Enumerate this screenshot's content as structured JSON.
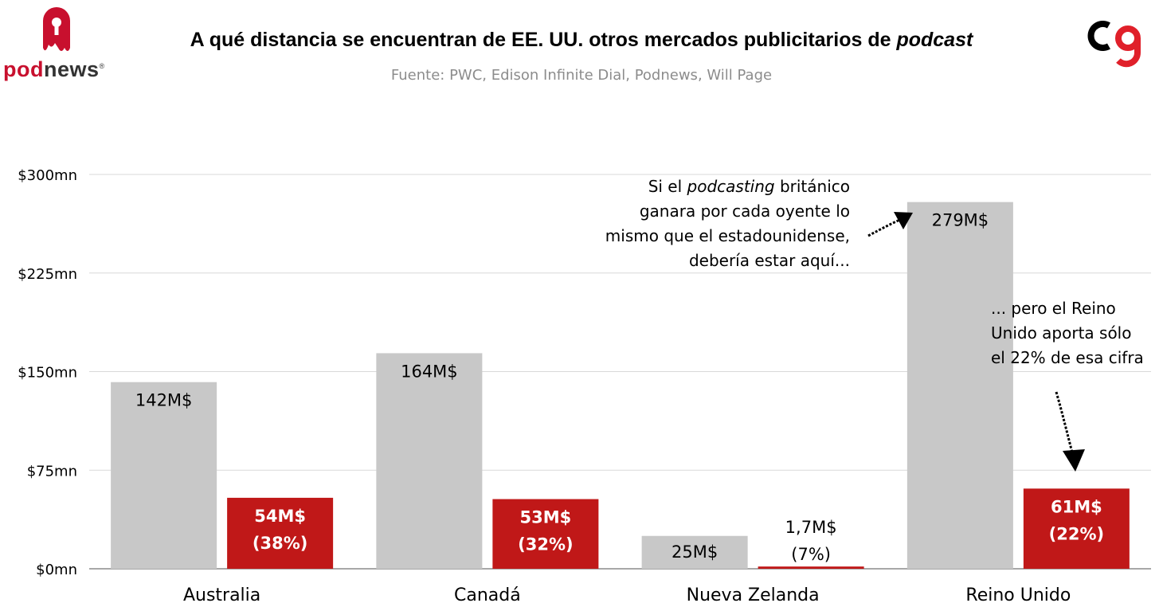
{
  "header": {
    "title_prefix": "A qué distancia se encuentran de EE. UU. otros mercados publicitarios de ",
    "title_emphasis": "podcast",
    "subtitle": "Fuente: PWC, Edison Infinite Dial, Podnews, Will Page"
  },
  "logos": {
    "left_brand_part1": "pod",
    "left_brand_part2": "news",
    "left_registered": "®",
    "right_logo_icon": "cg-monogram-icon"
  },
  "annotations": {
    "note1_lines": [
      [
        "Si el ",
        "podcasting",
        " británico"
      ],
      [
        "ganara  por cada oyente lo"
      ],
      [
        "mismo que el estadounidense,"
      ],
      [
        "debería estar aquí..."
      ]
    ],
    "note2_lines": [
      "... pero el Reino",
      "Unido aporta sólo",
      "el 22% de esa cifra"
    ]
  },
  "colors": {
    "potential": "#c8c8c8",
    "actual": "#c01818",
    "grid": "#d9d9d9",
    "axis": "#8c8c8c"
  },
  "chart_data": {
    "type": "bar",
    "categories": [
      "Australia",
      "Canadá",
      "Nueva Zelanda",
      "Reino Unido"
    ],
    "series": [
      {
        "values": [
          142,
          164,
          25,
          279
        ],
        "labels": [
          [
            "142M$"
          ],
          [
            "164M$"
          ],
          [
            "25M$"
          ],
          [
            "279M$"
          ]
        ]
      },
      {
        "values": [
          54,
          53,
          1.7,
          61
        ],
        "labels": [
          [
            "54M$",
            "(38%)"
          ],
          [
            "53M$",
            "(32%)"
          ],
          [
            "1,7M$",
            "(7%)"
          ],
          [
            "61M$",
            "(22%)"
          ]
        ]
      }
    ],
    "ylim": [
      0,
      300
    ],
    "yticks": [
      0,
      75,
      150,
      225,
      300
    ],
    "ytick_labels": [
      "$0mn",
      "$75mn",
      "$150mn",
      "$225mn",
      "$300mn"
    ],
    "xlabel": "",
    "ylabel": "",
    "grid": true
  }
}
